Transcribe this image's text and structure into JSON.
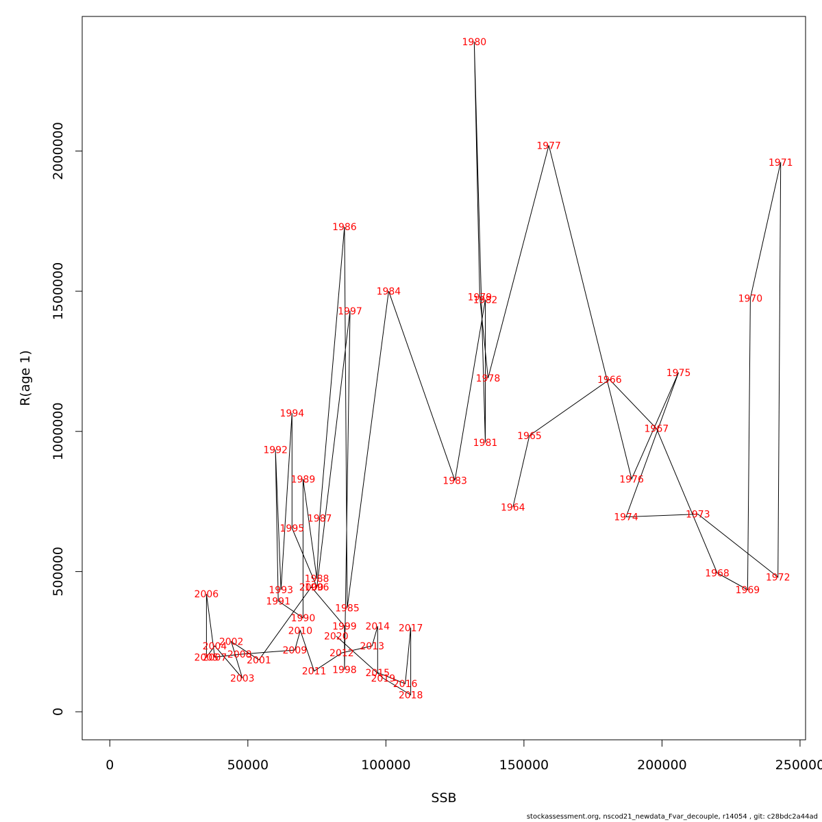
{
  "chart_data": {
    "type": "line",
    "title": "",
    "xlabel": "SSB",
    "ylabel": "R(age 1)",
    "xlim": [
      -10000,
      252000
    ],
    "ylim": [
      -100000,
      2480000
    ],
    "xticks": [
      {
        "value": 0,
        "label": "0"
      },
      {
        "value": 50000,
        "label": "50000"
      },
      {
        "value": 100000,
        "label": "100000"
      },
      {
        "value": 150000,
        "label": "150000"
      },
      {
        "value": 200000,
        "label": "200000"
      },
      {
        "value": 250000,
        "label": "250000"
      }
    ],
    "yticks": [
      {
        "value": 0,
        "label": "0"
      },
      {
        "value": 500000,
        "label": "500000"
      },
      {
        "value": 1000000,
        "label": "1000000"
      },
      {
        "value": 1500000,
        "label": "1500000"
      },
      {
        "value": 2000000,
        "label": "2000000"
      }
    ],
    "line_color": "#000000",
    "label_color": "#ff0000",
    "points": [
      {
        "year": "1964",
        "x": 146000,
        "y": 730000
      },
      {
        "year": "1965",
        "x": 152000,
        "y": 985000
      },
      {
        "year": "1966",
        "x": 181000,
        "y": 1185000
      },
      {
        "year": "1967",
        "x": 198000,
        "y": 1010000
      },
      {
        "year": "1968",
        "x": 220000,
        "y": 495000
      },
      {
        "year": "1969",
        "x": 231000,
        "y": 435000
      },
      {
        "year": "1970",
        "x": 232000,
        "y": 1475000
      },
      {
        "year": "1971",
        "x": 243000,
        "y": 1960000
      },
      {
        "year": "1972",
        "x": 242000,
        "y": 480000
      },
      {
        "year": "1973",
        "x": 213000,
        "y": 705000
      },
      {
        "year": "1974",
        "x": 187000,
        "y": 695000
      },
      {
        "year": "1975",
        "x": 206000,
        "y": 1210000
      },
      {
        "year": "1976",
        "x": 189000,
        "y": 830000
      },
      {
        "year": "1977",
        "x": 159000,
        "y": 2020000
      },
      {
        "year": "1978",
        "x": 137000,
        "y": 1190000
      },
      {
        "year": "1979",
        "x": 134000,
        "y": 1480000
      },
      {
        "year": "1980",
        "x": 132000,
        "y": 2390000
      },
      {
        "year": "1981",
        "x": 136000,
        "y": 960000
      },
      {
        "year": "1982",
        "x": 136000,
        "y": 1470000
      },
      {
        "year": "1983",
        "x": 125000,
        "y": 825000
      },
      {
        "year": "1984",
        "x": 101000,
        "y": 1500000
      },
      {
        "year": "1985",
        "x": 86000,
        "y": 370000
      },
      {
        "year": "1986",
        "x": 85000,
        "y": 1730000
      },
      {
        "year": "1987",
        "x": 76000,
        "y": 690000
      },
      {
        "year": "1988",
        "x": 75000,
        "y": 475000
      },
      {
        "year": "1989",
        "x": 70000,
        "y": 830000
      },
      {
        "year": "1990",
        "x": 70000,
        "y": 335000
      },
      {
        "year": "1991",
        "x": 61000,
        "y": 395000
      },
      {
        "year": "1992",
        "x": 60000,
        "y": 935000
      },
      {
        "year": "1993",
        "x": 62000,
        "y": 435000
      },
      {
        "year": "1994",
        "x": 66000,
        "y": 1065000
      },
      {
        "year": "1995",
        "x": 66000,
        "y": 655000
      },
      {
        "year": "1996",
        "x": 75000,
        "y": 445000
      },
      {
        "year": "1997",
        "x": 87000,
        "y": 1430000
      },
      {
        "year": "1998",
        "x": 85000,
        "y": 150000
      },
      {
        "year": "1999",
        "x": 85000,
        "y": 305000
      },
      {
        "year": "2000",
        "x": 73000,
        "y": 445000
      },
      {
        "year": "2001",
        "x": 54000,
        "y": 185000
      },
      {
        "year": "2002",
        "x": 44000,
        "y": 250000
      },
      {
        "year": "2003",
        "x": 48000,
        "y": 120000
      },
      {
        "year": "2004",
        "x": 38000,
        "y": 235000
      },
      {
        "year": "2005",
        "x": 35000,
        "y": 195000
      },
      {
        "year": "2006",
        "x": 35000,
        "y": 420000
      },
      {
        "year": "2007",
        "x": 38000,
        "y": 195000
      },
      {
        "year": "2008",
        "x": 47000,
        "y": 205000
      },
      {
        "year": "2009",
        "x": 67000,
        "y": 220000
      },
      {
        "year": "2010",
        "x": 69000,
        "y": 290000
      },
      {
        "year": "2011",
        "x": 74000,
        "y": 145000
      },
      {
        "year": "2012",
        "x": 84000,
        "y": 210000
      },
      {
        "year": "2013",
        "x": 95000,
        "y": 235000
      },
      {
        "year": "2014",
        "x": 97000,
        "y": 305000
      },
      {
        "year": "2015",
        "x": 97000,
        "y": 140000
      },
      {
        "year": "2016",
        "x": 107000,
        "y": 100000
      },
      {
        "year": "2017",
        "x": 109000,
        "y": 300000
      },
      {
        "year": "2018",
        "x": 109000,
        "y": 60000
      },
      {
        "year": "2019",
        "x": 99000,
        "y": 120000
      },
      {
        "year": "2020",
        "x": 82000,
        "y": 270000
      }
    ]
  },
  "footer": {
    "credit": "stockassessment.org, nscod21_newdata_Fvar_decouple, r14054 , git: c28bdc2a44ad"
  }
}
